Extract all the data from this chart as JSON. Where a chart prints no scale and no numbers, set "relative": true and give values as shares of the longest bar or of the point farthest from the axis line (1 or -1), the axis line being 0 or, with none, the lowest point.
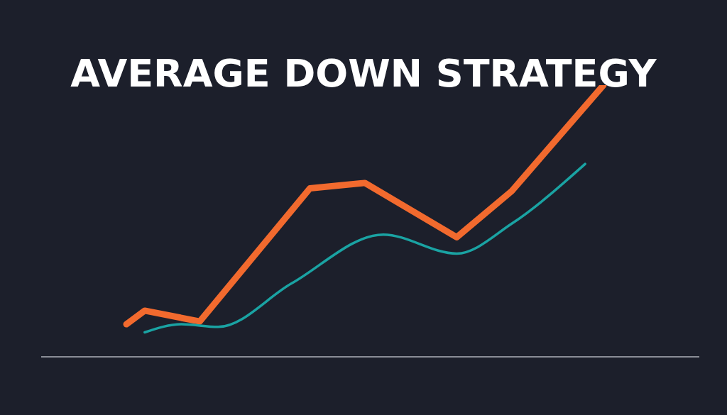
{
  "chart_data": {
    "type": "line",
    "title": "AVERAGE DOWN STRATEGY",
    "relative": true,
    "legend": false,
    "grid": false,
    "marker": "none",
    "categories": [
      null,
      null,
      null,
      null,
      null,
      null,
      null,
      null,
      null,
      null,
      null,
      null,
      null,
      null,
      null,
      null,
      null,
      null,
      null,
      null,
      null,
      null,
      null,
      null,
      null,
      null,
      null
    ],
    "series": [
      {
        "color": "#f26a2e",
        "values": [
          0.12,
          0.17,
          null,
          null,
          0.13,
          null,
          null,
          null,
          null,
          null,
          0.62,
          null,
          null,
          0.64,
          null,
          null,
          null,
          null,
          0.44,
          null,
          null,
          0.61,
          null,
          null,
          null,
          null,
          1
        ]
      },
      {
        "color": "#1aa3a3",
        "values": [
          null,
          0.09,
          null,
          0.12,
          null,
          0.11,
          null,
          null,
          null,
          0.27,
          null,
          null,
          null,
          null,
          0.45,
          null,
          null,
          null,
          0.38,
          null,
          null,
          0.49,
          null,
          null,
          null,
          0.71,
          null
        ]
      }
    ]
  }
}
